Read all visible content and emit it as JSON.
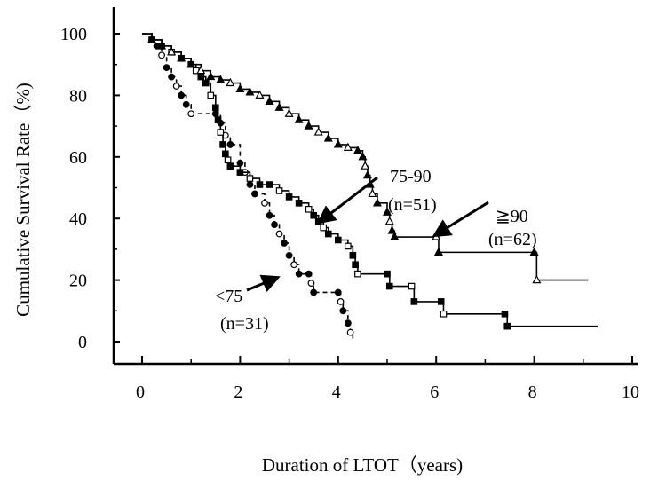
{
  "chart_data": {
    "type": "line",
    "title": "",
    "xlabel": "Duration of LTOT（years)",
    "ylabel": "Cumulative Survival Rate（%)",
    "xlim": [
      0,
      10.5
    ],
    "ylim": [
      -5,
      105
    ],
    "xticks": [
      0,
      2,
      4,
      6,
      8,
      10
    ],
    "yticks": [
      0,
      20,
      40,
      60,
      80,
      100
    ],
    "xtick_labels": [
      "0",
      "2",
      "4",
      "6",
      "8",
      "10"
    ],
    "ytick_labels": [
      "0",
      "20",
      "40",
      "60",
      "80",
      "100"
    ],
    "grid": false,
    "series": [
      {
        "key": "lt75",
        "style": "dashed",
        "markers": "filled and open circles",
        "points": [
          [
            0,
            100
          ],
          [
            0.2,
            98
          ],
          [
            0.3,
            96
          ],
          [
            0.4,
            93
          ],
          [
            0.5,
            89
          ],
          [
            0.6,
            86
          ],
          [
            0.7,
            83
          ],
          [
            0.8,
            80
          ],
          [
            0.9,
            77
          ],
          [
            1.0,
            74
          ],
          [
            1.5,
            74
          ],
          [
            1.6,
            71
          ],
          [
            1.7,
            67
          ],
          [
            1.8,
            64
          ],
          [
            2.0,
            58
          ],
          [
            2.1,
            55
          ],
          [
            2.2,
            51
          ],
          [
            2.3,
            48
          ],
          [
            2.5,
            45
          ],
          [
            2.6,
            41
          ],
          [
            2.7,
            38
          ],
          [
            2.8,
            35
          ],
          [
            2.9,
            32
          ],
          [
            3.0,
            28
          ],
          [
            3.1,
            25
          ],
          [
            3.2,
            22
          ],
          [
            3.4,
            22
          ],
          [
            3.45,
            19
          ],
          [
            3.5,
            16
          ],
          [
            4.0,
            16
          ],
          [
            4.05,
            13
          ],
          [
            4.1,
            10
          ],
          [
            4.2,
            6
          ],
          [
            4.25,
            3
          ],
          [
            4.3,
            0
          ]
        ]
      },
      {
        "key": "75to90",
        "style": "solid",
        "markers": "filled and open squares",
        "points": [
          [
            0,
            100
          ],
          [
            0.2,
            98
          ],
          [
            0.4,
            96
          ],
          [
            0.6,
            94
          ],
          [
            0.8,
            92
          ],
          [
            1.0,
            90
          ],
          [
            1.1,
            88
          ],
          [
            1.2,
            86
          ],
          [
            1.3,
            84
          ],
          [
            1.4,
            80
          ],
          [
            1.5,
            76
          ],
          [
            1.55,
            72
          ],
          [
            1.6,
            68
          ],
          [
            1.65,
            64
          ],
          [
            1.7,
            61
          ],
          [
            1.75,
            59
          ],
          [
            1.8,
            57
          ],
          [
            2.0,
            55
          ],
          [
            2.2,
            53
          ],
          [
            2.4,
            51
          ],
          [
            2.6,
            51
          ],
          [
            2.8,
            49
          ],
          [
            3.0,
            47
          ],
          [
            3.2,
            45
          ],
          [
            3.4,
            43
          ],
          [
            3.5,
            41
          ],
          [
            3.6,
            39
          ],
          [
            3.7,
            37
          ],
          [
            3.8,
            35
          ],
          [
            4.0,
            33
          ],
          [
            4.2,
            31
          ],
          [
            4.3,
            28
          ],
          [
            4.35,
            25
          ],
          [
            4.4,
            22
          ],
          [
            5.0,
            22
          ],
          [
            5.05,
            18
          ],
          [
            5.5,
            18
          ],
          [
            5.55,
            13
          ],
          [
            6.1,
            13
          ],
          [
            6.15,
            9
          ],
          [
            7.4,
            9
          ],
          [
            7.45,
            5
          ],
          [
            9.3,
            5
          ]
        ]
      },
      {
        "key": "ge90",
        "style": "solid",
        "markers": "filled and open triangles",
        "points": [
          [
            0,
            100
          ],
          [
            0.2,
            98
          ],
          [
            0.4,
            96
          ],
          [
            0.6,
            94
          ],
          [
            0.8,
            92
          ],
          [
            1.0,
            90
          ],
          [
            1.2,
            88
          ],
          [
            1.4,
            86
          ],
          [
            1.6,
            85
          ],
          [
            1.8,
            84
          ],
          [
            2.0,
            82
          ],
          [
            2.2,
            81
          ],
          [
            2.4,
            80
          ],
          [
            2.6,
            78
          ],
          [
            2.8,
            76
          ],
          [
            3.0,
            74
          ],
          [
            3.2,
            72
          ],
          [
            3.4,
            70
          ],
          [
            3.6,
            68
          ],
          [
            3.8,
            66
          ],
          [
            4.0,
            64
          ],
          [
            4.2,
            63
          ],
          [
            4.4,
            62
          ],
          [
            4.5,
            60
          ],
          [
            4.55,
            57
          ],
          [
            4.6,
            54
          ],
          [
            4.65,
            51
          ],
          [
            4.7,
            48
          ],
          [
            4.8,
            45
          ],
          [
            5.0,
            42
          ],
          [
            5.05,
            39
          ],
          [
            5.1,
            36
          ],
          [
            5.15,
            34
          ],
          [
            6.0,
            34
          ],
          [
            6.05,
            29
          ],
          [
            8.0,
            29
          ],
          [
            8.05,
            20
          ],
          [
            9.1,
            20
          ]
        ]
      }
    ],
    "annotations": [
      {
        "key": "lt75",
        "label": "<75",
        "n": "(n=31)"
      },
      {
        "key": "75to90",
        "label": "75-90",
        "n": "(n=51)"
      },
      {
        "key": "ge90",
        "label": "≧90",
        "n": "(n=62)"
      }
    ]
  }
}
